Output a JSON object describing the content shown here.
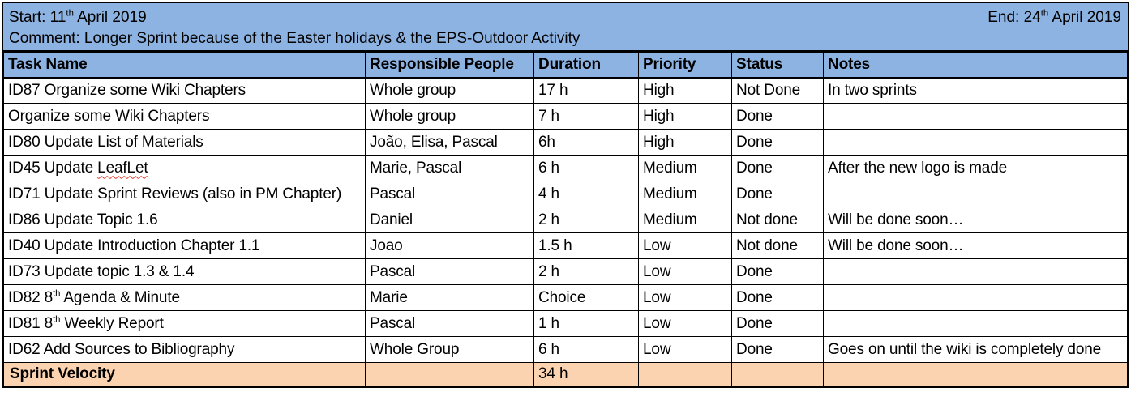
{
  "header": {
    "start": [
      {
        "t": "Start: 11"
      },
      {
        "t": "th",
        "sup": true
      },
      {
        "t": " April 2019"
      }
    ],
    "end": [
      {
        "t": "End: 24"
      },
      {
        "t": "th",
        "sup": true
      },
      {
        "t": " April 2019"
      }
    ],
    "comment": "Comment: Longer Sprint because of the Easter holidays & the EPS-Outdoor Activity"
  },
  "columns": [
    "Task Name",
    "Responsible People",
    "Duration",
    "Priority",
    "Status",
    "Notes"
  ],
  "rows": [
    {
      "task": [
        {
          "t": "ID87 Organize some Wiki Chapters"
        }
      ],
      "responsible": "Whole group",
      "duration": "17 h",
      "priority": "High",
      "status": "Not Done",
      "notes": "In two sprints"
    },
    {
      "task": [
        {
          "t": "Organize some Wiki Chapters"
        }
      ],
      "responsible": "Whole group",
      "duration": "7 h",
      "priority": "High",
      "status": "Done",
      "notes": ""
    },
    {
      "task": [
        {
          "t": "ID80 Update List of Materials"
        }
      ],
      "responsible": "João, Elisa, Pascal",
      "duration": "6h",
      "priority": "High",
      "status": "Done",
      "notes": ""
    },
    {
      "task": [
        {
          "t": "ID45 Update "
        },
        {
          "t": "LeafLet",
          "squiggle": true
        }
      ],
      "responsible": "Marie, Pascal",
      "duration": "6 h",
      "priority": "Medium",
      "status": "Done",
      "notes": "After the new logo is made"
    },
    {
      "task": [
        {
          "t": "ID71 Update Sprint Reviews (also in PM Chapter)"
        }
      ],
      "responsible": "Pascal",
      "duration": "4 h",
      "priority": "Medium",
      "status": "Done",
      "notes": ""
    },
    {
      "task": [
        {
          "t": "ID86 Update Topic 1.6"
        }
      ],
      "responsible": "Daniel",
      "duration": "2 h",
      "priority": "Medium",
      "status": "Not done",
      "notes": "Will be done soon…"
    },
    {
      "task": [
        {
          "t": "ID40 Update Introduction Chapter 1.1"
        }
      ],
      "responsible": "Joao",
      "duration": "1.5 h",
      "priority": "Low",
      "status": "Not done",
      "notes": "Will be done soon…"
    },
    {
      "task": [
        {
          "t": "ID73 Update topic 1.3 & 1.4"
        }
      ],
      "responsible": "Pascal",
      "duration": "2 h",
      "priority": "Low",
      "status": "Done",
      "notes": ""
    },
    {
      "task": [
        {
          "t": "ID82 8"
        },
        {
          "t": "th",
          "sup": true
        },
        {
          "t": " Agenda & Minute"
        }
      ],
      "responsible": "Marie",
      "duration": "Choice",
      "priority": "Low",
      "status": "Done",
      "notes": ""
    },
    {
      "task": [
        {
          "t": "ID81 8"
        },
        {
          "t": "th",
          "sup": true
        },
        {
          "t": " Weekly Report"
        }
      ],
      "responsible": "Pascal",
      "duration": "1 h",
      "priority": "Low",
      "status": "Done",
      "notes": ""
    },
    {
      "task": [
        {
          "t": "ID62 Add Sources to Bibliography"
        }
      ],
      "responsible": "Whole Group",
      "duration": "6 h",
      "priority": "Low",
      "status": "Done",
      "notes": "Goes on until the wiki is completely done"
    }
  ],
  "footer": {
    "label": "Sprint Velocity",
    "duration": "34 h"
  },
  "colors": {
    "band_blue": "#8DB3E2",
    "footer_orange": "#FBD3B1",
    "border": "#000000",
    "squiggle_red": "#E0301E",
    "background": "#FFFFFF"
  }
}
